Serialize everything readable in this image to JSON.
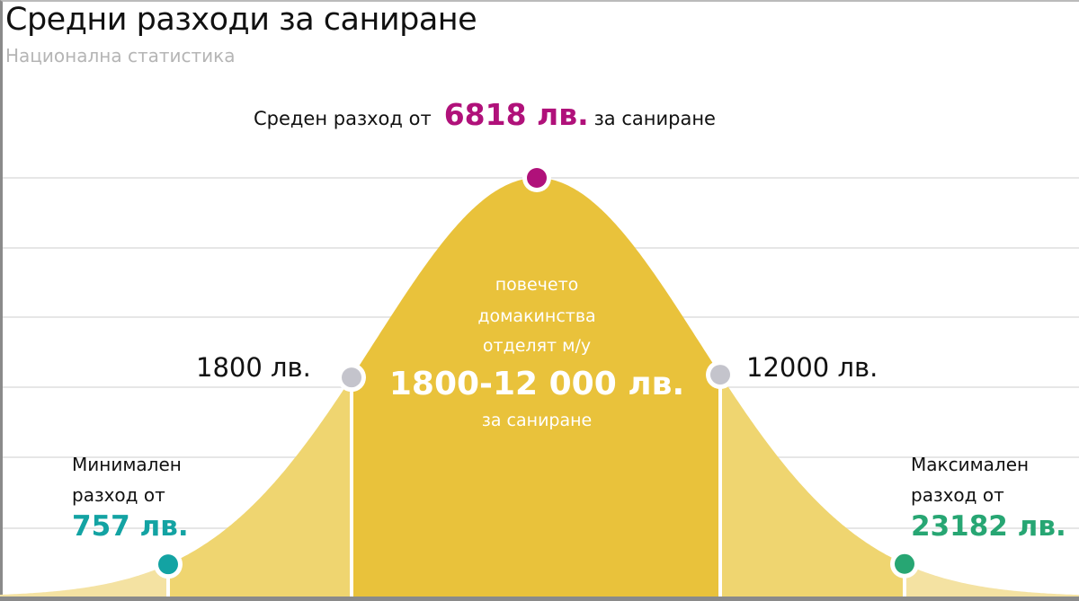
{
  "header": {
    "title": "Средни разходи за саниране",
    "subtitle": "Национална статистика"
  },
  "average": {
    "prefix": "Среден разход от",
    "value": "6818 лв.",
    "suffix": "за саниране",
    "color": "#b0117a"
  },
  "middle_band": {
    "line1": "повечето",
    "line2": "домакинства",
    "line3": "отделят м/у",
    "range": "1800-12 000 лв.",
    "line5": "за саниране",
    "color": "#e9c23b"
  },
  "lower_bound": {
    "label": "1800 лв.",
    "color": "#c4c4cc"
  },
  "upper_bound": {
    "label": "12000 лв.",
    "color": "#c4c4cc"
  },
  "minimum": {
    "line1": "Минимален",
    "line2": "разход от",
    "value": "757 лв.",
    "color": "#13a3a3"
  },
  "maximum": {
    "line1": "Максимален",
    "line2": "разход от",
    "value": "23182 лв.",
    "color": "#27a673"
  },
  "colors": {
    "tail": "#efd570",
    "outer_tail": "#f4e2a2",
    "grid": "#e6e6e6"
  }
}
